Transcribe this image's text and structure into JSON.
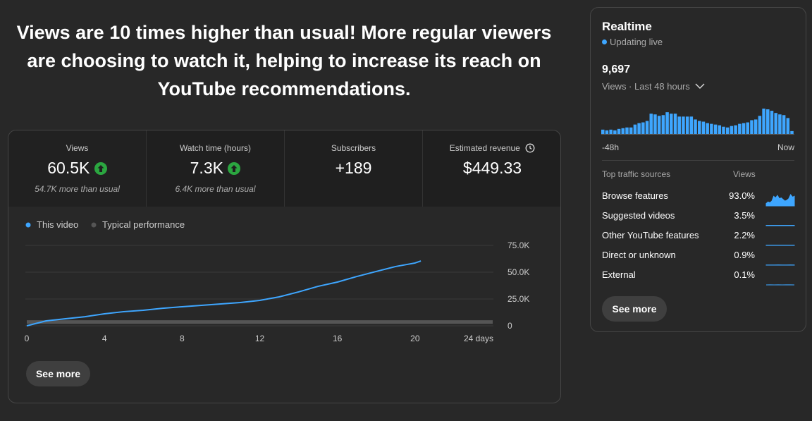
{
  "headline": "Views are 10 times higher than usual! More regular viewers are choosing to watch it, helping to increase its reach on YouTube recommendations.",
  "metrics": [
    {
      "label": "Views",
      "value": "60.5K",
      "note": "54.7K more than usual"
    },
    {
      "label": "Watch time (hours)",
      "value": "7.3K",
      "note": "6.4K more than usual"
    },
    {
      "label": "Subscribers",
      "value": "+189"
    },
    {
      "label": "Estimated revenue",
      "value": "$449.33"
    }
  ],
  "views_chart": {
    "type": "line",
    "series": [
      {
        "name": "This video",
        "color": "#3ea6ff",
        "x": [
          0,
          1,
          2,
          3,
          4,
          5,
          6,
          7,
          8,
          9,
          10,
          11,
          12,
          13,
          14,
          15,
          16,
          17,
          18,
          19,
          20,
          20.3
        ],
        "values": [
          0,
          4600,
          6600,
          8500,
          11200,
          13200,
          14500,
          16400,
          17800,
          19100,
          20400,
          21700,
          23700,
          27000,
          31600,
          36800,
          40800,
          46000,
          50700,
          55300,
          58600,
          60500
        ]
      },
      {
        "name": "Typical performance",
        "color": "#555555",
        "x": [
          0,
          24
        ],
        "values": [
          3500,
          3500
        ]
      }
    ],
    "xlim": [
      0,
      24
    ],
    "ylim": [
      0,
      75000
    ],
    "xticks": [
      0,
      4,
      8,
      12,
      16,
      20,
      {
        "value": 24,
        "label": "24 days"
      }
    ],
    "yticks": [
      0,
      {
        "value": 25000,
        "label": "25.0K"
      },
      {
        "value": 50000,
        "label": "50.0K"
      },
      {
        "value": 75000,
        "label": "75.0K"
      }
    ],
    "grid": true
  },
  "see_more": "See more",
  "realtime": {
    "title": "Realtime",
    "status": "Updating live",
    "views": "9,697",
    "period": "Views · Last 48 hours",
    "chart": {
      "type": "bar",
      "color": "#3ea6ff",
      "values": [
        66,
        55,
        66,
        55,
        77,
        88,
        99,
        99,
        143,
        165,
        176,
        198,
        308,
        297,
        275,
        286,
        330,
        308,
        308,
        264,
        264,
        264,
        264,
        220,
        198,
        187,
        165,
        154,
        143,
        132,
        110,
        99,
        121,
        132,
        154,
        165,
        176,
        209,
        220,
        275,
        385,
        374,
        352,
        319,
        297,
        286,
        242,
        44
      ]
    },
    "start_label": "-48h",
    "end_label": "Now",
    "sources_header": "Top traffic sources",
    "views_header": "Views",
    "sources": [
      {
        "name": "Browse features",
        "share": "93.0%",
        "trend": [
          3,
          5,
          4,
          6,
          12,
          10,
          13,
          9,
          10,
          8,
          6,
          7,
          9,
          14,
          11,
          12
        ]
      },
      {
        "name": "Suggested videos",
        "share": "3.5%",
        "trend": [
          0.4,
          0.4,
          0.4,
          0.4,
          0.4,
          0.4,
          0.4,
          0.4
        ]
      },
      {
        "name": "Other YouTube features",
        "share": "2.2%",
        "trend": [
          0.3,
          0.3,
          0.3,
          0.3,
          0.3,
          0.3,
          0.3,
          0.3
        ]
      },
      {
        "name": "Direct or unknown",
        "share": "0.9%",
        "trend": [
          0.2,
          0.2,
          0.2,
          0.3,
          0.2,
          0.2,
          0.3,
          0.2
        ]
      },
      {
        "name": "External",
        "share": "0.1%",
        "trend": [
          0,
          0.1,
          0,
          0.1,
          0,
          0.1,
          0.1,
          0
        ]
      }
    ],
    "see_more": "See more"
  }
}
